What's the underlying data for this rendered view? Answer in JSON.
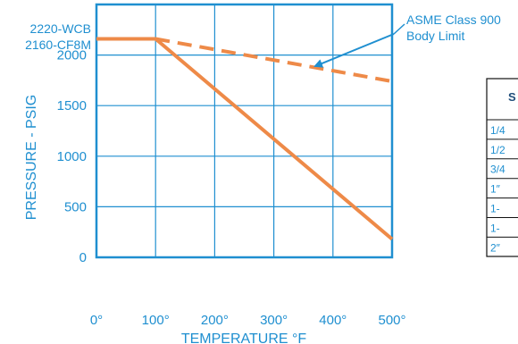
{
  "colors": {
    "accent": "#1f8fd0",
    "line": "#ee8a48",
    "grid": "#1f8fd0",
    "table_border": "#111111"
  },
  "chart_data": {
    "type": "line",
    "xlabel": "TEMPERATURE °F",
    "ylabel": "PRESSURE - PSIG",
    "xlim": [
      0,
      500
    ],
    "ylim": [
      0,
      2500
    ],
    "x_ticks": [
      "0°",
      "100°",
      "200°",
      "300°",
      "400°",
      "500°"
    ],
    "y_ticks": [
      "0",
      "500",
      "1000",
      "1500",
      "2000"
    ],
    "top_labels": [
      "2220-WCB",
      "2160-CF8M"
    ],
    "grid": true,
    "series": [
      {
        "style": "solid",
        "x": [
          0,
          100,
          500
        ],
        "y": [
          2160,
          2160,
          180
        ]
      },
      {
        "style": "dashed",
        "x": [
          100,
          500
        ],
        "y": [
          2160,
          1740
        ]
      }
    ],
    "annotation": {
      "lines": [
        "ASME Class 900",
        "Body Limit"
      ],
      "arrow_to": [
        370,
        1890
      ]
    }
  },
  "table": {
    "header": "S",
    "rows": [
      "1/4",
      "1/2",
      "3/4",
      "1″",
      "1-",
      "1-",
      "2″"
    ]
  }
}
